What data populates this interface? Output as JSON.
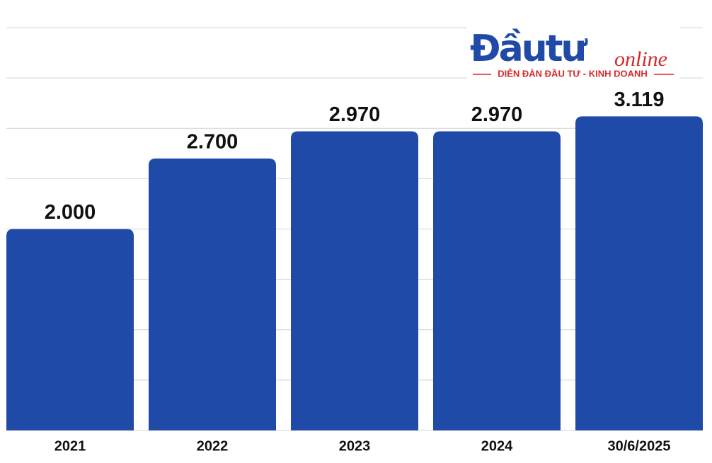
{
  "logo": {
    "name": "Đầutư",
    "script": "online",
    "tagline": "DIỄN ĐÀN ĐẦU TƯ - KINH DOANH"
  },
  "chart_data": {
    "type": "bar",
    "categories": [
      "2021",
      "2022",
      "2023",
      "2024",
      "30/6/2025"
    ],
    "values": [
      2000,
      2700,
      2970,
      2970,
      3119
    ],
    "value_labels": [
      "2.000",
      "2.700",
      "2.970",
      "2.970",
      "3.119"
    ],
    "color": "#1f4aa8",
    "ylim": [
      0,
      4000
    ],
    "yticks": [
      0,
      500,
      1000,
      1500,
      2000,
      2500,
      3000,
      3500,
      4000
    ],
    "grid": true
  }
}
